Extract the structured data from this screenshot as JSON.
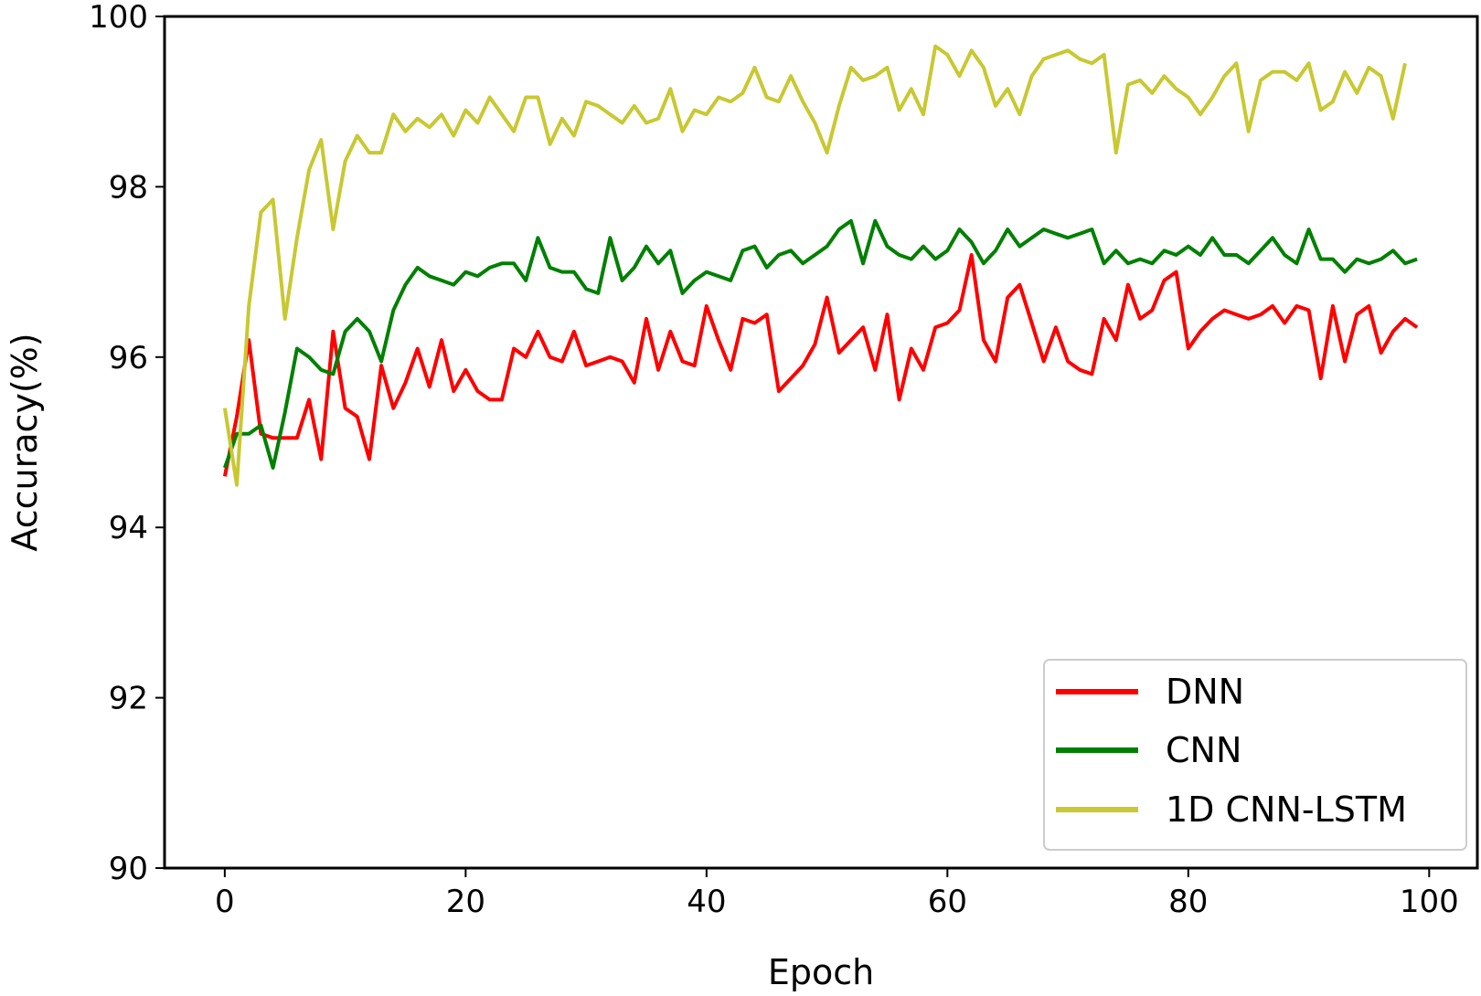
{
  "chart_data": {
    "type": "line",
    "title": "",
    "xlabel": "Epoch",
    "ylabel": "Accuracy(%)",
    "xlim": [
      -5,
      104
    ],
    "ylim": [
      90,
      100
    ],
    "xticks": [
      0,
      20,
      40,
      60,
      80,
      100
    ],
    "yticks": [
      90,
      92,
      94,
      96,
      98,
      100
    ],
    "grid": false,
    "legend_position": "lower-right",
    "series": [
      {
        "name": "DNN",
        "color": "#ff0000",
        "values": [
          94.6,
          95.3,
          96.2,
          95.1,
          95.05,
          95.05,
          95.05,
          95.5,
          94.8,
          96.3,
          95.4,
          95.3,
          94.8,
          95.9,
          95.4,
          95.7,
          96.1,
          95.65,
          96.2,
          95.6,
          95.85,
          95.6,
          95.5,
          95.5,
          96.1,
          96.0,
          96.3,
          96.0,
          95.95,
          96.3,
          95.9,
          95.95,
          96.0,
          95.95,
          95.7,
          96.45,
          95.85,
          96.3,
          95.95,
          95.9,
          96.6,
          96.2,
          95.85,
          96.45,
          96.4,
          96.5,
          95.6,
          95.75,
          95.9,
          96.15,
          96.7,
          96.05,
          96.2,
          96.35,
          95.85,
          96.5,
          95.5,
          96.1,
          95.85,
          96.35,
          96.4,
          96.55,
          97.2,
          96.2,
          95.95,
          96.7,
          96.85,
          96.4,
          95.95,
          96.35,
          95.95,
          95.85,
          95.8,
          96.45,
          96.2,
          96.85,
          96.45,
          96.55,
          96.9,
          97.0,
          96.1,
          96.3,
          96.45,
          96.55,
          96.5,
          96.45,
          96.5,
          96.6,
          96.4,
          96.6,
          96.55,
          95.75,
          96.6,
          95.95,
          96.5,
          96.6,
          96.05,
          96.3,
          96.45,
          96.35
        ]
      },
      {
        "name": "CNN",
        "color": "#008000",
        "values": [
          94.7,
          95.1,
          95.1,
          95.2,
          94.7,
          95.35,
          96.1,
          96.0,
          95.85,
          95.8,
          96.3,
          96.45,
          96.3,
          95.95,
          96.55,
          96.85,
          97.05,
          96.95,
          96.9,
          96.85,
          97.0,
          96.95,
          97.05,
          97.1,
          97.1,
          96.9,
          97.4,
          97.05,
          97.0,
          97.0,
          96.8,
          96.75,
          97.4,
          96.9,
          97.05,
          97.3,
          97.1,
          97.25,
          96.75,
          96.9,
          97.0,
          96.95,
          96.9,
          97.25,
          97.3,
          97.05,
          97.2,
          97.25,
          97.1,
          97.2,
          97.3,
          97.5,
          97.6,
          97.1,
          97.6,
          97.3,
          97.2,
          97.15,
          97.3,
          97.15,
          97.25,
          97.5,
          97.35,
          97.1,
          97.25,
          97.5,
          97.3,
          97.4,
          97.5,
          97.45,
          97.4,
          97.45,
          97.5,
          97.1,
          97.25,
          97.1,
          97.15,
          97.1,
          97.25,
          97.2,
          97.3,
          97.2,
          97.4,
          97.2,
          97.2,
          97.1,
          97.25,
          97.4,
          97.2,
          97.1,
          97.5,
          97.15,
          97.15,
          97.0,
          97.15,
          97.1,
          97.15,
          97.25,
          97.1,
          97.15
        ]
      },
      {
        "name": "1D CNN-LSTM",
        "color": "#c8c832",
        "values": [
          95.4,
          94.5,
          96.6,
          97.7,
          97.85,
          96.45,
          97.4,
          98.2,
          98.55,
          97.5,
          98.3,
          98.6,
          98.4,
          98.4,
          98.85,
          98.65,
          98.8,
          98.7,
          98.85,
          98.6,
          98.9,
          98.75,
          99.05,
          98.85,
          98.65,
          99.05,
          99.05,
          98.5,
          98.8,
          98.6,
          99.0,
          98.95,
          98.85,
          98.75,
          98.95,
          98.75,
          98.8,
          99.15,
          98.65,
          98.9,
          98.85,
          99.05,
          99.0,
          99.1,
          99.4,
          99.05,
          99.0,
          99.3,
          99.0,
          98.75,
          98.4,
          98.95,
          99.4,
          99.25,
          99.3,
          99.4,
          98.9,
          99.15,
          98.85,
          99.65,
          99.55,
          99.3,
          99.6,
          99.4,
          98.95,
          99.15,
          98.85,
          99.3,
          99.5,
          99.55,
          99.6,
          99.5,
          99.45,
          99.55,
          98.4,
          99.2,
          99.25,
          99.1,
          99.3,
          99.15,
          99.05,
          98.85,
          99.05,
          99.3,
          99.45,
          98.65,
          99.25,
          99.35,
          99.35,
          99.25,
          99.45,
          98.9,
          99.0,
          99.35,
          99.1,
          99.4,
          99.3,
          98.8,
          99.45
        ]
      }
    ]
  }
}
